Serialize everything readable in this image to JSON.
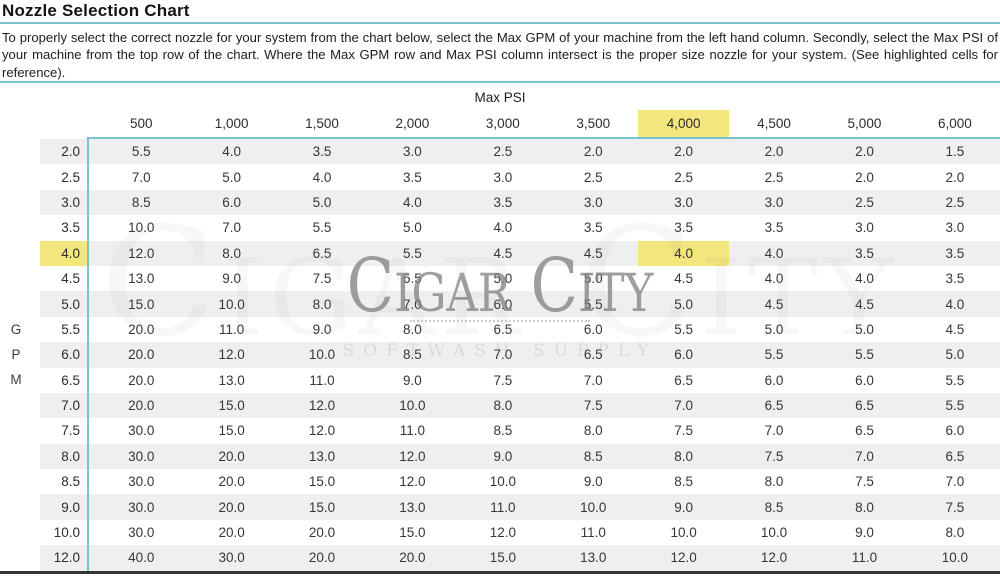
{
  "header": {
    "title": "Nozzle Selection Chart",
    "description": "To properly select the correct nozzle for your system from the chart below, select the Max GPM of your machine from the left hand column. Secondly, select the Max PSI of your machine from the top row of the chart. Where the Max GPM row and Max PSI column intersect is the proper size nozzle for your system. (See highlighted cells for reference)."
  },
  "watermark": {
    "logo_text": "Cigar City",
    "subtitle": "SOFTWASH SUPPLY"
  },
  "chart_data": {
    "type": "table",
    "title": "Nozzle Selection Chart",
    "column_axis_label": "Max PSI",
    "row_axis_label": "GPM",
    "columns": [
      "500",
      "1,000",
      "1,500",
      "2,000",
      "3,000",
      "3,500",
      "4,000",
      "4,500",
      "5,000",
      "6,000"
    ],
    "row_headers": [
      "2.0",
      "2.5",
      "3.0",
      "3.5",
      "4.0",
      "4.5",
      "5.0",
      "5.5",
      "6.0",
      "6.5",
      "7.0",
      "7.5",
      "8.0",
      "8.5",
      "9.0",
      "10.0",
      "12.0"
    ],
    "values": [
      [
        "5.5",
        "4.0",
        "3.5",
        "3.0",
        "2.5",
        "2.0",
        "2.0",
        "2.0",
        "2.0",
        "1.5"
      ],
      [
        "7.0",
        "5.0",
        "4.0",
        "3.5",
        "3.0",
        "2.5",
        "2.5",
        "2.5",
        "2.0",
        "2.0"
      ],
      [
        "8.5",
        "6.0",
        "5.0",
        "4.0",
        "3.5",
        "3.0",
        "3.0",
        "3.0",
        "2.5",
        "2.5"
      ],
      [
        "10.0",
        "7.0",
        "5.5",
        "5.0",
        "4.0",
        "3.5",
        "3.5",
        "3.5",
        "3.0",
        "3.0"
      ],
      [
        "12.0",
        "8.0",
        "6.5",
        "5.5",
        "4.5",
        "4.5",
        "4.0",
        "4.0",
        "3.5",
        "3.5"
      ],
      [
        "13.0",
        "9.0",
        "7.5",
        "6.5",
        "5.0",
        "5.0",
        "4.5",
        "4.0",
        "4.0",
        "3.5"
      ],
      [
        "15.0",
        "10.0",
        "8.0",
        "7.0",
        "6.0",
        "5.5",
        "5.0",
        "4.5",
        "4.5",
        "4.0"
      ],
      [
        "20.0",
        "11.0",
        "9.0",
        "8.0",
        "6.5",
        "6.0",
        "5.5",
        "5.0",
        "5.0",
        "4.5"
      ],
      [
        "20.0",
        "12.0",
        "10.0",
        "8.5",
        "7.0",
        "6.5",
        "6.0",
        "5.5",
        "5.5",
        "5.0"
      ],
      [
        "20.0",
        "13.0",
        "11.0",
        "9.0",
        "7.5",
        "7.0",
        "6.5",
        "6.0",
        "6.0",
        "5.5"
      ],
      [
        "20.0",
        "15.0",
        "12.0",
        "10.0",
        "8.0",
        "7.5",
        "7.0",
        "6.5",
        "6.5",
        "5.5"
      ],
      [
        "30.0",
        "15.0",
        "12.0",
        "11.0",
        "8.5",
        "8.0",
        "7.5",
        "7.0",
        "6.5",
        "6.0"
      ],
      [
        "30.0",
        "20.0",
        "13.0",
        "12.0",
        "9.0",
        "8.5",
        "8.0",
        "7.5",
        "7.0",
        "6.5"
      ],
      [
        "30.0",
        "20.0",
        "15.0",
        "12.0",
        "10.0",
        "9.0",
        "8.5",
        "8.0",
        "7.5",
        "7.0"
      ],
      [
        "30.0",
        "20.0",
        "15.0",
        "13.0",
        "11.0",
        "10.0",
        "9.0",
        "8.5",
        "8.0",
        "7.5"
      ],
      [
        "30.0",
        "20.0",
        "20.0",
        "15.0",
        "12.0",
        "11.0",
        "10.0",
        "10.0",
        "9.0",
        "8.0"
      ],
      [
        "40.0",
        "30.0",
        "20.0",
        "20.0",
        "15.0",
        "13.0",
        "12.0",
        "12.0",
        "11.0",
        "10.0"
      ]
    ],
    "highlighted": {
      "column_index": 6,
      "row_index": 4,
      "column_label": "4,000",
      "row_label": "4.0",
      "cell_value": "4.0"
    },
    "layout": {
      "striped_rows": "odd-1-based",
      "stripe_color": "#efefef",
      "highlight_color": "#f2e67c",
      "border_color": "#79c3cb",
      "bottom_bar_color": "#343434"
    }
  }
}
